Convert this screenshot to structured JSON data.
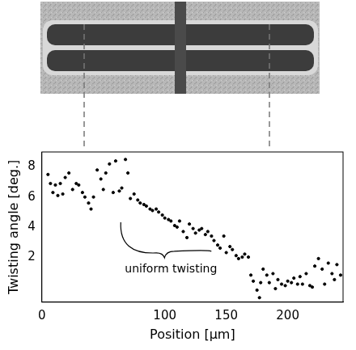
{
  "chart_data": {
    "type": "scatter",
    "x_label": "Position [µm]",
    "y_label": "Twisting angle [deg.]",
    "annotations": [
      {
        "text": "uniform twisting",
        "x": 105,
        "y": 1.2
      }
    ],
    "xlim": [
      0,
      245
    ],
    "xticks": [
      0,
      100,
      150,
      200
    ],
    "ylim": [
      -1,
      9
    ],
    "yticks": [
      2,
      4,
      6,
      8
    ],
    "grid": false,
    "color": "#000000",
    "marker": "circle",
    "x": [
      5,
      7,
      9,
      11,
      13,
      15,
      17,
      19,
      22,
      25,
      28,
      30,
      33,
      35,
      38,
      40,
      42,
      45,
      48,
      50,
      52,
      55,
      58,
      60,
      63,
      65,
      68,
      70,
      72,
      75,
      78,
      80,
      83,
      85,
      88,
      90,
      93,
      95,
      98,
      100,
      103,
      105,
      108,
      110,
      112,
      115,
      118,
      120,
      123,
      125,
      128,
      130,
      133,
      135,
      138,
      140,
      143,
      145,
      148,
      150,
      153,
      155,
      158,
      160,
      163,
      165,
      168,
      170,
      172,
      175,
      177,
      178,
      180,
      183,
      185,
      188,
      190,
      192,
      195,
      198,
      200,
      203,
      205,
      208,
      210,
      212,
      215,
      218,
      220,
      222,
      225,
      228,
      230,
      233,
      236,
      238,
      240,
      243
    ],
    "values": [
      7.5,
      6.9,
      6.3,
      6.8,
      6.1,
      6.9,
      6.2,
      7.3,
      7.6,
      6.5,
      6.9,
      6.8,
      6.3,
      6.0,
      5.6,
      5.2,
      6.0,
      7.8,
      7.2,
      6.5,
      7.6,
      8.2,
      6.3,
      8.4,
      6.4,
      6.6,
      8.5,
      7.6,
      5.9,
      6.2,
      5.8,
      5.6,
      5.5,
      5.4,
      5.2,
      5.1,
      5.2,
      5.0,
      4.8,
      4.6,
      4.5,
      4.4,
      4.1,
      4.0,
      4.4,
      3.7,
      3.3,
      4.2,
      3.9,
      3.6,
      3.8,
      3.9,
      3.5,
      3.7,
      3.4,
      3.1,
      2.8,
      2.6,
      3.4,
      2.3,
      2.7,
      2.5,
      2.1,
      1.9,
      2.0,
      2.2,
      2.0,
      0.8,
      0.4,
      -0.2,
      -0.7,
      0.3,
      1.2,
      0.8,
      0.3,
      0.9,
      -0.1,
      0.5,
      0.2,
      0.1,
      0.4,
      0.3,
      0.6,
      0.2,
      0.7,
      0.2,
      0.9,
      0.1,
      0.0,
      1.4,
      1.9,
      1.2,
      0.2,
      1.6,
      0.9,
      0.5,
      1.5,
      0.8
    ]
  }
}
